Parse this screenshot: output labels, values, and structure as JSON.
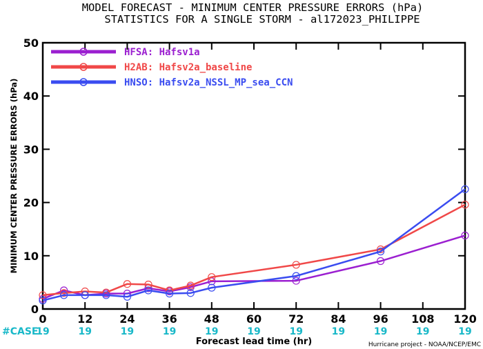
{
  "chart_data": {
    "type": "line",
    "title": "MODEL FORECAST - MINIMUM CENTER PRESSURE ERRORS (hPa)",
    "subtitle": "STATISTICS FOR A SINGLE STORM - al172023_PHILIPPE",
    "xlabel": "Forecast lead time (hr)",
    "ylabel": "MINIMUM CENTER PRESSURE ERRORS (hPa)",
    "xlim": [
      0,
      120
    ],
    "ylim": [
      0,
      50
    ],
    "xticks": [
      "0",
      "12",
      "24",
      "36",
      "48",
      "60",
      "72",
      "84",
      "96",
      "108",
      "120"
    ],
    "yticks": [
      "0",
      "10",
      "20",
      "30",
      "40",
      "50"
    ],
    "case_label": "#CASE",
    "case_counts": [
      "19",
      "19",
      "19",
      "19",
      "19",
      "19",
      "19",
      "19",
      "19",
      "19",
      "19"
    ],
    "legend_placement": "top-left",
    "credit": "Hurricane project - NOAA/NCEP/EMC",
    "series": [
      {
        "name": "HFSA: Hafsv1a",
        "color": "#9b1fd0",
        "x": [
          0,
          6,
          12,
          18,
          24,
          30,
          36,
          42,
          48,
          72,
          96,
          120
        ],
        "y": [
          1.9,
          3.5,
          2.6,
          2.9,
          2.9,
          3.9,
          3.3,
          4.1,
          5.2,
          5.3,
          9.0,
          13.8
        ]
      },
      {
        "name": "H2AB: Hafsv2a_baseline",
        "color": "#f04848",
        "x": [
          0,
          6,
          12,
          18,
          24,
          30,
          36,
          42,
          48,
          72,
          96,
          120
        ],
        "y": [
          2.6,
          3.0,
          3.3,
          3.1,
          4.7,
          4.6,
          3.5,
          4.4,
          6.0,
          8.3,
          11.2,
          19.6
        ]
      },
      {
        "name": "HNSO: Hafsv2a_NSSL_MP_sea_CCN",
        "color": "#3a4cf0",
        "x": [
          0,
          6,
          12,
          18,
          24,
          30,
          36,
          42,
          48,
          72,
          96,
          120
        ],
        "y": [
          1.6,
          2.6,
          2.6,
          2.6,
          2.3,
          3.5,
          2.9,
          3.0,
          4.0,
          6.2,
          10.8,
          22.5
        ]
      }
    ]
  }
}
